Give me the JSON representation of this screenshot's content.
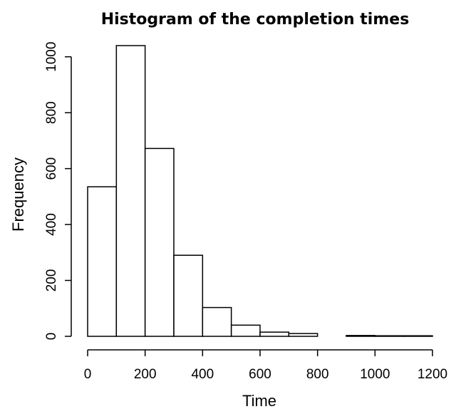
{
  "chart_data": {
    "type": "bar",
    "title": "Histogram of the completion times",
    "xlabel": "Time",
    "ylabel": "Frequency",
    "bins": [
      {
        "start": 0,
        "end": 100,
        "count": 535
      },
      {
        "start": 100,
        "end": 200,
        "count": 1040
      },
      {
        "start": 200,
        "end": 300,
        "count": 672
      },
      {
        "start": 300,
        "end": 400,
        "count": 290
      },
      {
        "start": 400,
        "end": 500,
        "count": 103
      },
      {
        "start": 500,
        "end": 600,
        "count": 40
      },
      {
        "start": 600,
        "end": 700,
        "count": 15
      },
      {
        "start": 700,
        "end": 800,
        "count": 10
      },
      {
        "start": 800,
        "end": 900,
        "count": 0
      },
      {
        "start": 900,
        "end": 1000,
        "count": 3
      },
      {
        "start": 1000,
        "end": 1100,
        "count": 2
      },
      {
        "start": 1100,
        "end": 1200,
        "count": 2
      }
    ],
    "xlim": [
      0,
      1200
    ],
    "ylim": [
      0,
      1040
    ],
    "x_ticks": [
      0,
      200,
      400,
      600,
      800,
      1000,
      1200
    ],
    "y_ticks": [
      0,
      200,
      400,
      600,
      800,
      1000
    ],
    "grid": false,
    "colors": {
      "bar_fill": "#ffffff",
      "bar_stroke": "#000000"
    }
  }
}
